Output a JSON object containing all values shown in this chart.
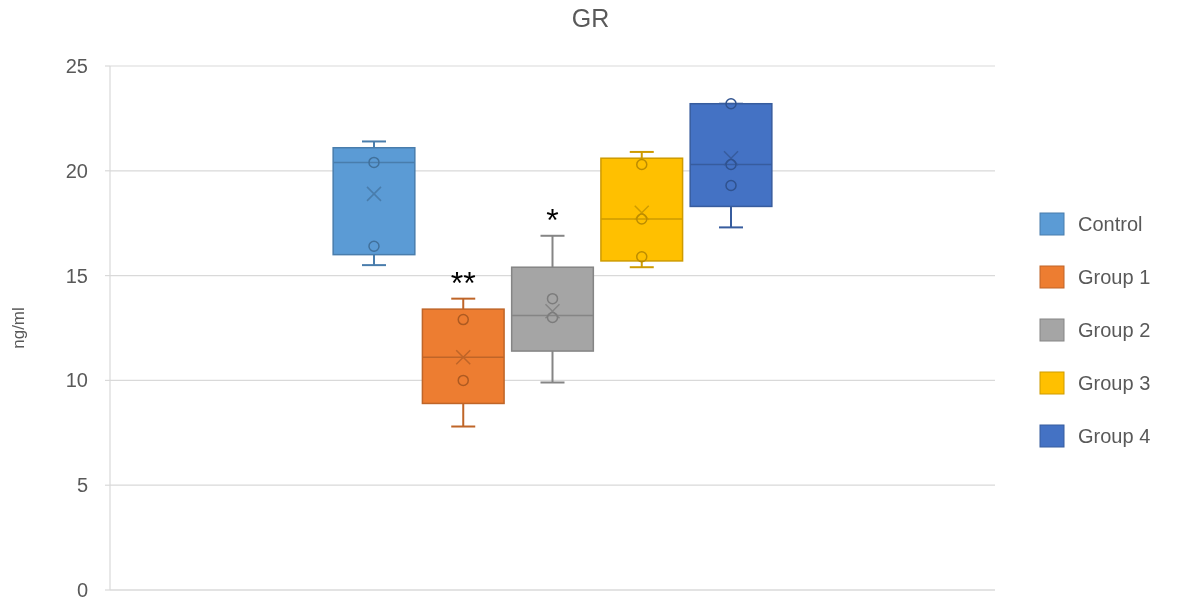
{
  "chart_data": {
    "type": "box",
    "title": "GR",
    "ylabel": "ng/ml",
    "categories": [
      null
    ],
    "ylim": [
      0,
      25
    ],
    "yticks": [
      0,
      5,
      10,
      15,
      20,
      25
    ],
    "grid": "y",
    "legend": "right",
    "series": [
      {
        "name": "Control",
        "color": "#5b9bd5",
        "boxes": [
          {
            "low": 15.5,
            "q1": 16.0,
            "median": 20.4,
            "q3": 21.1,
            "high": 21.4,
            "mean": 18.9
          }
        ]
      },
      {
        "name": "Group 1",
        "color": "#ed7d31",
        "boxes": [
          {
            "low": 7.8,
            "q1": 8.9,
            "median": 11.1,
            "q3": 13.4,
            "high": 13.9,
            "mean": 11.1
          }
        ]
      },
      {
        "name": "Group 2",
        "color": "#a5a5a5",
        "boxes": [
          {
            "low": 9.9,
            "q1": 11.4,
            "median": 13.1,
            "q3": 15.4,
            "high": 16.9,
            "mean": 13.3
          }
        ]
      },
      {
        "name": "Group 3",
        "color": "#ffc000",
        "boxes": [
          {
            "low": 15.4,
            "q1": 15.7,
            "median": 17.7,
            "q3": 20.6,
            "high": 20.9,
            "mean": 18.0
          }
        ]
      },
      {
        "name": "Group 4",
        "color": "#4472c4",
        "boxes": [
          {
            "low": 17.3,
            "q1": 18.3,
            "median": 20.3,
            "q3": 23.2,
            "high": 23.2,
            "mean": 20.6
          }
        ]
      },
      {
        "type": "scatter",
        "color": "#41719c",
        "x": [
          null,
          null
        ],
        "values": [
          20.4,
          16.4
        ]
      },
      {
        "type": "scatter",
        "color": "#ae5a21",
        "x": [
          null,
          null
        ],
        "values": [
          12.9,
          10.0
        ]
      },
      {
        "type": "scatter",
        "color": "#7c7c7c",
        "x": [
          null,
          null
        ],
        "values": [
          13.9,
          13.0
        ]
      },
      {
        "type": "scatter",
        "color": "#bc8c00",
        "x": [
          null,
          null,
          null
        ],
        "values": [
          20.3,
          17.7,
          15.9
        ]
      },
      {
        "type": "scatter",
        "color": "#2f528f",
        "x": [
          null,
          null,
          null
        ],
        "values": [
          23.2,
          20.3,
          19.3
        ]
      }
    ],
    "annotations": [
      "**",
      "*"
    ]
  }
}
